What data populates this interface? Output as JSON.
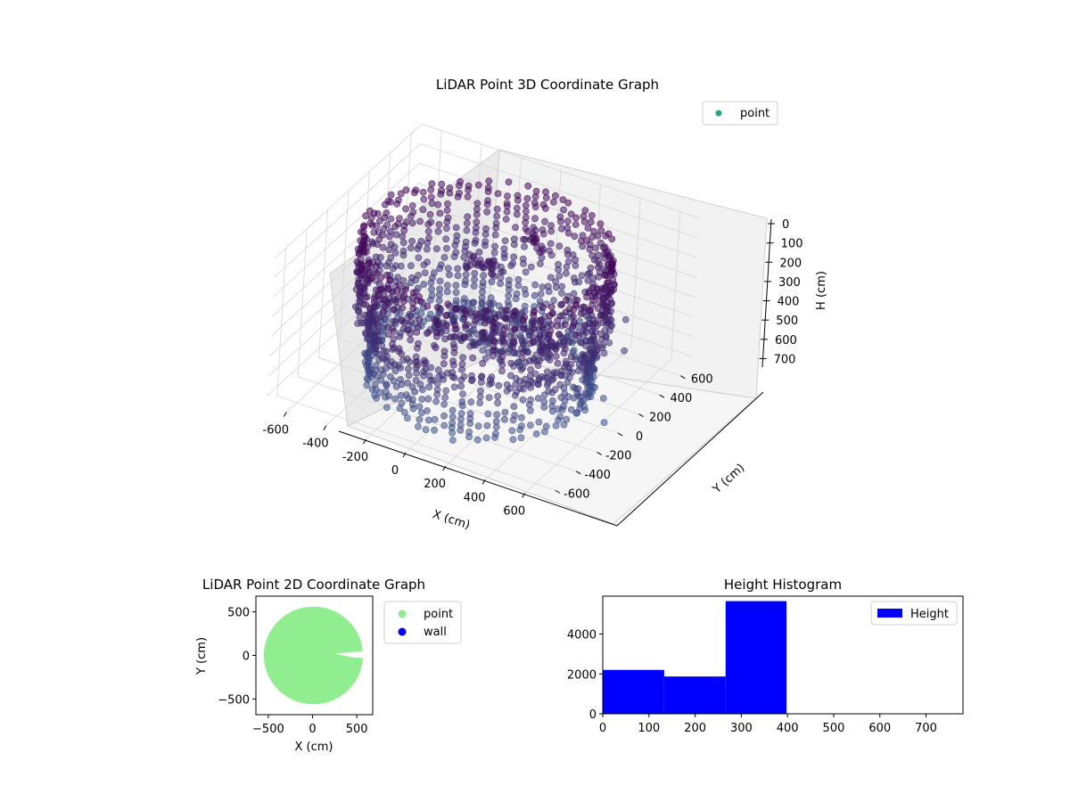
{
  "chart_data": [
    {
      "type": "scatter",
      "title": "LiDAR Point 3D Coordinate Graph",
      "xlabel": "X (cm)",
      "ylabel": "Y (cm)",
      "zlabel": "H (cm)",
      "xlim": [
        -700,
        700
      ],
      "ylim": [
        -700,
        700
      ],
      "zlim": [
        750,
        0
      ],
      "x_ticks": [
        "-600",
        "-400",
        "-200",
        "0",
        "200",
        "400",
        "600"
      ],
      "y_ticks": [
        "-600",
        "-400",
        "-200",
        "0",
        "200",
        "400",
        "600"
      ],
      "z_ticks": [
        "0",
        "100",
        "200",
        "300",
        "400",
        "500",
        "600",
        "700"
      ],
      "grid": true,
      "legend": {
        "location": "upper-right",
        "entries": [
          {
            "label": "point",
            "color": "#21a585"
          }
        ]
      },
      "series": [
        {
          "name": "point",
          "colormap": [
            "#440154",
            "#3b528b"
          ],
          "rings": [
            {
              "radius": 560,
              "h_min": 40,
              "h_max": 440,
              "step": 30
            },
            {
              "radius": 500,
              "h_min": 420,
              "h_max": 740,
              "step": 30
            }
          ],
          "interior_clusters": [
            {
              "x": 60,
              "y": 50,
              "h": 480,
              "spread": 190,
              "count": 220
            },
            {
              "x": -120,
              "y": 200,
              "h": 260,
              "spread": 60,
              "count": 25
            },
            {
              "x": 80,
              "y": 280,
              "h": 140,
              "spread": 40,
              "count": 12
            }
          ],
          "outliers": [
            {
              "x": 560,
              "y": 120,
              "h": 680
            },
            {
              "x": 600,
              "y": 60,
              "h": 760
            },
            {
              "x": 540,
              "y": -40,
              "h": 620
            },
            {
              "x": 580,
              "y": 260,
              "h": 500
            },
            {
              "x": 520,
              "y": 380,
              "h": 420
            },
            {
              "x": 160,
              "y": -560,
              "h": 700
            }
          ]
        }
      ]
    },
    {
      "type": "scatter",
      "title": "LiDAR Point 2D Coordinate Graph",
      "xlabel": "X (cm)",
      "ylabel": "Y (cm)",
      "xlim": [
        -640,
        680
      ],
      "ylim": [
        -680,
        680
      ],
      "x_ticks": [
        -500,
        0,
        500
      ],
      "y_ticks": [
        -500,
        0,
        500
      ],
      "legend": {
        "location": "outside-right",
        "entries": [
          {
            "label": "point",
            "color": "#90ee90"
          },
          {
            "label": "wall",
            "color": "#0000ff"
          }
        ]
      },
      "series": [
        {
          "name": "point",
          "color": "#90ee90",
          "shape": "disc",
          "cx": 10,
          "cy": 0,
          "radius": 560
        },
        {
          "name": "wall",
          "color": "#0000ff",
          "x": [],
          "y": []
        }
      ]
    },
    {
      "type": "bar",
      "title": "Height Histogram",
      "xlim": [
        0,
        780
      ],
      "ylim": [
        0,
        5900
      ],
      "x_ticks": [
        0,
        100,
        200,
        300,
        400,
        500,
        600,
        700
      ],
      "y_ticks": [
        0,
        2000,
        4000
      ],
      "legend": {
        "location": "upper-right",
        "entries": [
          {
            "label": "Height",
            "color": "#0000ff"
          }
        ]
      },
      "series": [
        {
          "name": "Height",
          "color": "#0000ff",
          "bins": [
            {
              "x0": 0,
              "x1": 133,
              "value": 2200
            },
            {
              "x0": 133,
              "x1": 266,
              "value": 1870
            },
            {
              "x0": 266,
              "x1": 398,
              "value": 5650
            }
          ]
        }
      ]
    }
  ]
}
